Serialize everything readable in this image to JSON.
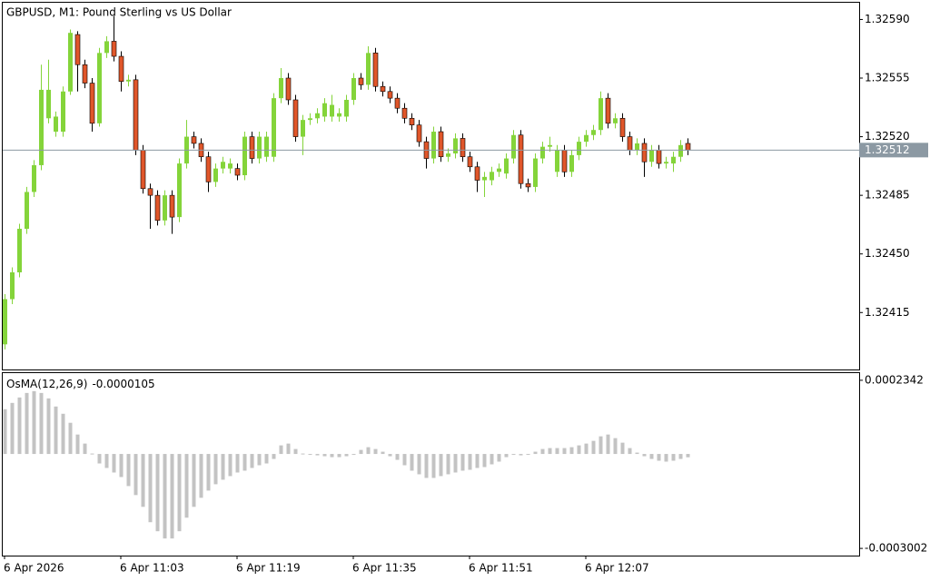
{
  "chart_data": [
    {
      "type": "candlestick",
      "title": "GBPUSD, M1:  Pound Sterling vs US Dollar",
      "up_color": "#84d43a",
      "down_color": "#e0562a",
      "open": [
        1.32396,
        1.32423,
        1.32439,
        1.32465,
        1.32487,
        1.32503,
        1.32531,
        1.32523,
        1.32523,
        1.32547,
        1.32581,
        1.32563,
        1.32552,
        1.32528,
        1.3257,
        1.32577,
        1.32568,
        1.32553,
        1.32554,
        1.32512,
        1.32489,
        1.32485,
        1.3247,
        1.32485,
        1.32472,
        1.32504,
        1.3252,
        1.32516,
        1.32508,
        1.32493,
        1.32501,
        1.32501,
        1.32501,
        1.32497,
        1.3252,
        1.32507,
        1.32508,
        1.32508,
        1.32543,
        1.32555,
        1.32542,
        1.3252,
        1.3253,
        1.32531,
        1.32532,
        1.32532,
        1.32532,
        1.32532,
        1.32542,
        1.32555,
        1.32551,
        1.3257,
        1.3255,
        1.32547,
        1.32543,
        1.32537,
        1.32531,
        1.32527,
        1.32517,
        1.32507,
        1.32523,
        1.32508,
        1.3251,
        1.32519,
        1.32508,
        1.32502,
        1.32494,
        1.32494,
        1.32499,
        1.32498,
        1.32507,
        1.32521,
        1.32492,
        1.3249,
        1.32507,
        1.32514,
        1.32499,
        1.32512,
        1.32499,
        1.32509,
        1.32517,
        1.32521,
        1.32524,
        1.32543,
        1.32528,
        1.32531,
        1.3252,
        1.32512,
        1.32516,
        1.32505,
        1.32512,
        1.32504,
        1.32504,
        1.32508,
        1.32516
      ],
      "high": [
        1.32426,
        1.32442,
        1.32468,
        1.3249,
        1.32506,
        1.32563,
        1.32566,
        1.32535,
        1.3255,
        1.32584,
        1.32583,
        1.32566,
        1.32555,
        1.32573,
        1.3258,
        1.32592,
        1.32571,
        1.32557,
        1.32557,
        1.32515,
        1.32492,
        1.32488,
        1.32488,
        1.32488,
        1.32507,
        1.3253,
        1.32523,
        1.32519,
        1.32511,
        1.32504,
        1.32508,
        1.32507,
        1.32504,
        1.32523,
        1.32523,
        1.32523,
        1.32523,
        1.32546,
        1.32561,
        1.32558,
        1.32545,
        1.32533,
        1.32534,
        1.32537,
        1.32543,
        1.32545,
        1.32537,
        1.32545,
        1.32558,
        1.32558,
        1.32574,
        1.32573,
        1.32553,
        1.3255,
        1.32546,
        1.3254,
        1.32534,
        1.3253,
        1.3252,
        1.32526,
        1.32526,
        1.32513,
        1.32522,
        1.32522,
        1.32511,
        1.32505,
        1.32499,
        1.32502,
        1.32504,
        1.3251,
        1.32524,
        1.32524,
        1.32495,
        1.3251,
        1.32517,
        1.3252,
        1.32515,
        1.32515,
        1.32512,
        1.3252,
        1.32524,
        1.32527,
        1.32547,
        1.32546,
        1.32534,
        1.32534,
        1.32523,
        1.32519,
        1.32519,
        1.32515,
        1.32515,
        1.32508,
        1.32511,
        1.32518,
        1.32519
      ],
      "low": [
        1.32393,
        1.3242,
        1.32436,
        1.32462,
        1.32484,
        1.325,
        1.32528,
        1.3252,
        1.3252,
        1.32545,
        1.32547,
        1.32549,
        1.32523,
        1.32526,
        1.32567,
        1.32565,
        1.32547,
        1.3255,
        1.32509,
        1.32486,
        1.32465,
        1.32467,
        1.32467,
        1.32462,
        1.32469,
        1.32501,
        1.32513,
        1.32505,
        1.32487,
        1.3249,
        1.32498,
        1.32498,
        1.32494,
        1.32494,
        1.32504,
        1.32504,
        1.32505,
        1.32505,
        1.3254,
        1.32539,
        1.32517,
        1.32509,
        1.32527,
        1.32528,
        1.32529,
        1.32529,
        1.32529,
        1.32529,
        1.32539,
        1.32548,
        1.32548,
        1.32547,
        1.32544,
        1.3254,
        1.32534,
        1.32528,
        1.32524,
        1.32514,
        1.32501,
        1.32504,
        1.32505,
        1.32505,
        1.32507,
        1.32505,
        1.32499,
        1.32487,
        1.32484,
        1.32491,
        1.32496,
        1.32495,
        1.32504,
        1.32489,
        1.32487,
        1.32487,
        1.32504,
        1.32511,
        1.32496,
        1.32496,
        1.32496,
        1.32506,
        1.32514,
        1.32518,
        1.32521,
        1.32525,
        1.32525,
        1.32517,
        1.32509,
        1.32509,
        1.32496,
        1.32502,
        1.32501,
        1.32501,
        1.32499,
        1.32505,
        1.32509
      ],
      "close": [
        1.32423,
        1.32439,
        1.32465,
        1.32487,
        1.32503,
        1.32548,
        1.32548,
        1.32532,
        1.32547,
        1.32582,
        1.32563,
        1.32552,
        1.32528,
        1.3257,
        1.32577,
        1.32568,
        1.32553,
        1.32554,
        1.32512,
        1.32489,
        1.32485,
        1.3247,
        1.32485,
        1.32472,
        1.32504,
        1.3252,
        1.32516,
        1.32508,
        1.32493,
        1.32501,
        1.32505,
        1.32504,
        1.32497,
        1.3252,
        1.32507,
        1.3252,
        1.3252,
        1.32543,
        1.32555,
        1.32542,
        1.3252,
        1.3253,
        1.32531,
        1.32534,
        1.3254,
        1.32539,
        1.32534,
        1.32542,
        1.32555,
        1.32551,
        1.3257,
        1.3255,
        1.32547,
        1.32543,
        1.32537,
        1.32531,
        1.32527,
        1.32517,
        1.32507,
        1.32523,
        1.32508,
        1.3251,
        1.32519,
        1.32508,
        1.32502,
        1.32494,
        1.32496,
        1.32499,
        1.32501,
        1.32507,
        1.32521,
        1.32492,
        1.3249,
        1.32507,
        1.32514,
        1.32515,
        1.32512,
        1.32499,
        1.32509,
        1.32517,
        1.32521,
        1.32524,
        1.32543,
        1.32528,
        1.32531,
        1.3252,
        1.32512,
        1.32516,
        1.32505,
        1.32512,
        1.32504,
        1.32505,
        1.32508,
        1.32515,
        1.32512
      ],
      "ylim": [
        1.32381,
        1.326
      ],
      "yticks": [
        {
          "value": 1.3259,
          "label": "1.32590"
        },
        1.32555,
        {
          "value": 1.3252,
          "label": "1.32520"
        },
        1.32485,
        {
          "value": 1.3245,
          "label": "1.32450"
        },
        1.32415
      ],
      "current_price": 1.32512,
      "current_price_color": "#8c99a3"
    },
    {
      "type": "bar",
      "indicator": "OsMA(12,26,9)",
      "indicator_value": -1.05e-05,
      "color": "#c3c3c3",
      "values": [
        0.0001422,
        0.0001623,
        0.0001796,
        0.0001939,
        0.0001997,
        0.0001939,
        0.0001767,
        0.0001508,
        0.0001278,
        9.91e-05,
        6.18e-05,
        3.3e-05,
        1.4e-06,
        -3.02e-05,
        -4.45e-05,
        -5.89e-05,
        -7.33e-05,
        -0.000102,
        -0.0001307,
        -0.0001681,
        -0.0002169,
        -0.0002456,
        -0.0002686,
        -0.0002686,
        -0.0002456,
        -0.0002025,
        -0.0001681,
        -0.0001393,
        -0.0001164,
        -9.62e-05,
        -8.19e-05,
        -7.04e-05,
        -5.89e-05,
        -5.31e-05,
        -4.45e-05,
        -3.59e-05,
        -3.02e-05,
        -1.58e-05,
        2.73e-05,
        3.3e-05,
        1.58e-05,
        1.4e-06,
        -1.4e-06,
        -4.3e-06,
        -7.2e-06,
        -1.01e-05,
        -1.01e-05,
        -7.2e-06,
        -1.4e-06,
        1.29e-05,
        2.15e-05,
        1.58e-05,
        7.2e-06,
        -7.2e-06,
        -1.87e-05,
        -3.59e-05,
        -5.31e-05,
        -6.46e-05,
        -7.61e-05,
        -7.61e-05,
        -7.04e-05,
        -6.46e-05,
        -5.89e-05,
        -5.31e-05,
        -5.03e-05,
        -4.45e-05,
        -4.17e-05,
        -3.3e-05,
        -2.44e-05,
        -1.01e-05,
        -1.4e-06,
        -4.3e-06,
        -1.4e-06,
        7.2e-06,
        1.58e-05,
        1.87e-05,
        1.87e-05,
        1.87e-05,
        2.15e-05,
        2.73e-05,
        3.3e-05,
        4.17e-05,
        5.6e-05,
        6.18e-05,
        5.03e-05,
        3.59e-05,
        1.87e-05,
        4.3e-06,
        -7.2e-06,
        -1.58e-05,
        -2.15e-05,
        -2.44e-05,
        -2.15e-05,
        -1.58e-05,
        -1.05e-05
      ],
      "ylim": [
        -0.000323,
        0.000257
      ],
      "yticks": [
        -0.0003002,
        0.0002342
      ],
      "categories": [
        "6 Apr 2026",
        null,
        null,
        null,
        null,
        null,
        null,
        null,
        null,
        null,
        null,
        null,
        null,
        null,
        null,
        null,
        "6 Apr 11:03",
        null,
        null,
        null,
        null,
        null,
        null,
        null,
        null,
        null,
        null,
        null,
        null,
        null,
        null,
        null,
        "6 Apr 11:19",
        null,
        null,
        null,
        null,
        null,
        null,
        null,
        null,
        null,
        null,
        null,
        null,
        null,
        null,
        null,
        "6 Apr 11:35",
        null,
        null,
        null,
        null,
        null,
        null,
        null,
        null,
        null,
        null,
        null,
        null,
        null,
        null,
        null,
        "6 Apr 11:51",
        null,
        null,
        null,
        null,
        null,
        null,
        null,
        null,
        null,
        null,
        null,
        null,
        null,
        null,
        null,
        "6 Apr 12:07",
        null,
        null,
        null,
        null,
        null,
        null,
        null,
        null,
        null,
        null,
        null,
        null,
        null,
        null
      ]
    }
  ]
}
